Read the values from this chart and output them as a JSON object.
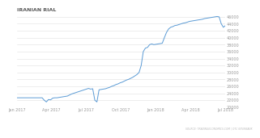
{
  "title": "IRANIAN RIAL",
  "source_text": "SOURCE: TRADINGECONOMICS.COM | OTC INTERBANK",
  "background_color": "#ffffff",
  "line_color": "#5b9bd5",
  "grid_color": "#e0e0e0",
  "title_color": "#555555",
  "tick_color": "#999999",
  "ylim": [
    20000,
    47000
  ],
  "yticks": [
    20000,
    22000,
    24000,
    26000,
    28000,
    30000,
    32000,
    34000,
    36000,
    38000,
    40000,
    42000,
    44000,
    46000
  ],
  "xtick_labels": [
    "Jan 2017",
    "Apr 2017",
    "Jul 2017",
    "Oct 2017",
    "Jan 2018",
    "Apr 2018",
    "Jul 2018"
  ],
  "series_y": [
    22700,
    22700,
    22700,
    22700,
    22700,
    22700,
    22700,
    22700,
    22700,
    22700,
    22700,
    22700,
    22700,
    22000,
    21500,
    22200,
    22100,
    22600,
    22700,
    22700,
    22800,
    22900,
    23000,
    23100,
    23200,
    23500,
    23800,
    24000,
    24200,
    24400,
    24600,
    24800,
    25000,
    25200,
    25400,
    25200,
    25300,
    22000,
    21500,
    25000,
    25100,
    25200,
    25300,
    25500,
    25700,
    26000,
    26200,
    26500,
    26700,
    27000,
    27200,
    27500,
    27800,
    28000,
    28300,
    28600,
    29000,
    29400,
    30000,
    32000,
    36000,
    37000,
    37200,
    38000,
    38200,
    38000,
    38100,
    38200,
    38300,
    38400,
    40000,
    41500,
    42500,
    43000,
    43200,
    43500,
    43600,
    43800,
    44000,
    44200,
    44300,
    44500,
    44700,
    44800,
    44900,
    45000,
    45100,
    45200,
    45300,
    45500,
    45600,
    45700,
    45800,
    45900,
    46000,
    46100,
    46000,
    44000,
    43000,
    43500
  ]
}
